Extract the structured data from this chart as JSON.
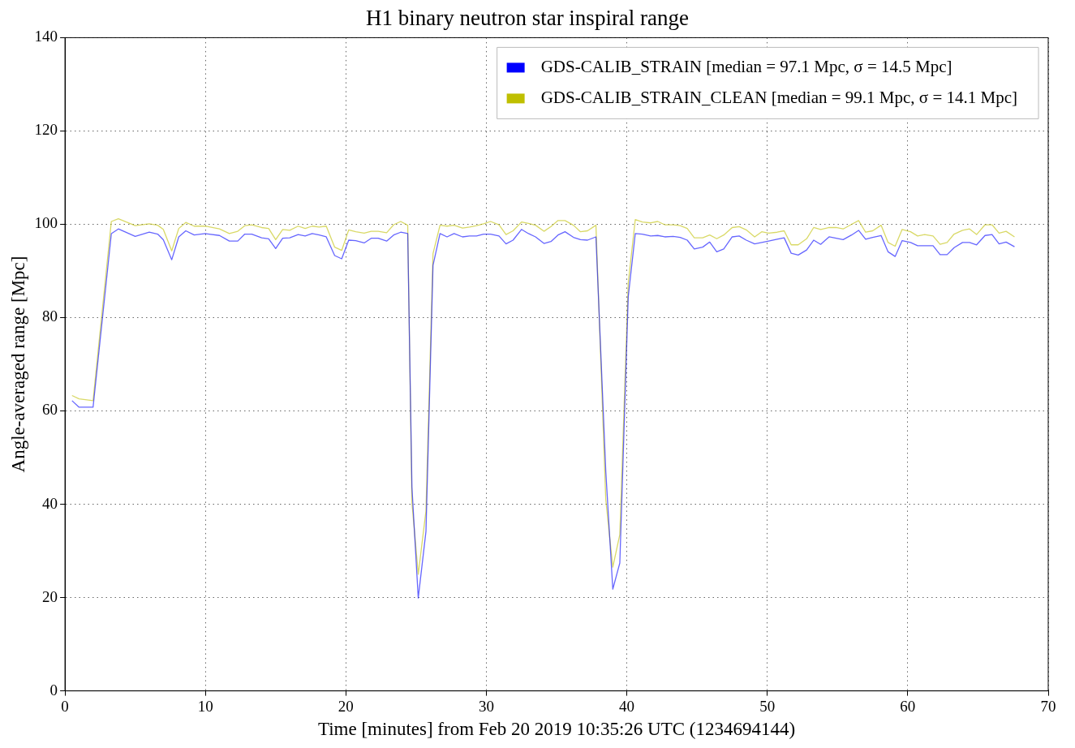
{
  "chart_data": {
    "type": "line",
    "title": "H1 binary neutron star inspiral range",
    "xlabel": "Time [minutes] from Feb 20 2019 10:35:26 UTC (1234694144)",
    "ylabel": "Angle-averaged range [Mpc]",
    "x": [
      0.5,
      1,
      2,
      3.3,
      3.8,
      5,
      6,
      6.6,
      7,
      7.6,
      8.1,
      8.6,
      9.2,
      10,
      11,
      11.7,
      12.3,
      12.8,
      13.3,
      14,
      14.5,
      15,
      15.5,
      16,
      16.6,
      17.1,
      17.6,
      18.1,
      18.6,
      19.2,
      19.7,
      20.2,
      20.7,
      21.3,
      21.8,
      22.3,
      22.9,
      23.4,
      23.9,
      24.4,
      24.7,
      25.15,
      25.7,
      26.2,
      26.7,
      27.2,
      27.7,
      28.3,
      28.8,
      29.3,
      29.8,
      30.3,
      30.9,
      31.4,
      31.9,
      32.5,
      33,
      33.5,
      34.1,
      34.6,
      35.1,
      35.6,
      36.2,
      36.7,
      37.2,
      37.8,
      38.5,
      39,
      39.5,
      40.1,
      40.6,
      41.1,
      41.7,
      42.2,
      42.7,
      43.3,
      43.8,
      44.3,
      44.8,
      45.4,
      45.9,
      46.4,
      46.9,
      47.5,
      48,
      48.5,
      49.1,
      49.6,
      50.1,
      50.7,
      51.2,
      51.7,
      52.2,
      52.8,
      53.3,
      53.8,
      54.4,
      54.9,
      55.4,
      56,
      56.5,
      57,
      57.5,
      58.1,
      58.6,
      59.1,
      59.6,
      60.2,
      60.7,
      61.2,
      61.8,
      62.3,
      62.8,
      63.3,
      63.9,
      64.4,
      64.9,
      65.5,
      66,
      66.5,
      67,
      67.6
    ],
    "series": [
      {
        "name": "GDS-CALIB_STRAIN [median = 97.1 Mpc, σ = 14.5 Mpc]",
        "color": "#0000ff",
        "values": [
          62.2,
          60.8,
          60.8,
          98,
          99,
          97.4,
          98.3,
          97.9,
          96.7,
          92.4,
          97.3,
          98.6,
          97.7,
          98,
          97.6,
          96.4,
          96.4,
          97.9,
          97.9,
          97.1,
          96.9,
          94.8,
          97,
          97.1,
          97.8,
          97.5,
          98,
          97.7,
          97.3,
          93.3,
          92.6,
          96.6,
          96.5,
          96,
          97,
          97,
          96.4,
          97.7,
          98.3,
          98,
          43.7,
          19.9,
          34.2,
          91.2,
          98,
          97.3,
          98,
          97.3,
          97.5,
          97.5,
          97.9,
          97.9,
          97.5,
          95.8,
          96.6,
          98.9,
          98,
          97.3,
          95.9,
          96.3,
          97.7,
          98.4,
          97.2,
          96.7,
          96.6,
          97.3,
          47.1,
          21.8,
          27.4,
          84.5,
          98,
          97.9,
          97.5,
          97.6,
          97.3,
          97.4,
          97.2,
          96.6,
          94.7,
          95.1,
          96.2,
          94.1,
          94.7,
          97.3,
          97.5,
          96.6,
          95.8,
          96.1,
          96.4,
          96.8,
          97.1,
          93.8,
          93.4,
          94.5,
          96.6,
          95.7,
          97.3,
          97,
          96.7,
          97.7,
          98.7,
          96.8,
          97.2,
          97.6,
          94.1,
          93.1,
          96.5,
          96.1,
          95.4,
          95.4,
          95.4,
          93.5,
          93.5,
          95,
          96.1,
          96.1,
          95.6,
          97.6,
          97.8,
          95.8,
          96.2,
          95.2
        ]
      },
      {
        "name": "GDS-CALIB_STRAIN_CLEAN [median = 99.1 Mpc, σ = 14.1 Mpc]",
        "color": "#bfbf00",
        "values": [
          63.3,
          62.6,
          62.2,
          100.6,
          101.2,
          99.7,
          100.1,
          99.8,
          98.9,
          94.3,
          99.1,
          100.4,
          99.6,
          99.6,
          99,
          98,
          98.5,
          99.7,
          99.9,
          99.3,
          99.1,
          96.7,
          98.9,
          98.7,
          99.6,
          99.1,
          99.6,
          99.4,
          99.6,
          95.1,
          94.4,
          98.8,
          98.4,
          98.1,
          98.5,
          98.5,
          98.2,
          99.9,
          100.6,
          99.8,
          40.3,
          25,
          38.6,
          93.7,
          99.8,
          99.6,
          99.8,
          99.2,
          99.4,
          99.7,
          100.1,
          100.6,
          99.9,
          97.8,
          98.6,
          100.5,
          100.2,
          99.8,
          98.5,
          99.5,
          100.8,
          100.8,
          99.8,
          98.4,
          98.6,
          99.8,
          41,
          26.5,
          33.5,
          87.4,
          101,
          100.5,
          100.3,
          100.6,
          99.9,
          99.9,
          99.7,
          99.1,
          97.1,
          97.1,
          97.7,
          96.9,
          97.7,
          99.3,
          99.5,
          98.8,
          97.3,
          98.4,
          98.1,
          98.3,
          98.6,
          95.6,
          95.6,
          96.9,
          99.3,
          98.9,
          99.3,
          99.3,
          99,
          100,
          100.8,
          98.3,
          98.6,
          99.8,
          96.1,
          95.3,
          98.9,
          98.4,
          97.5,
          97.8,
          97.5,
          95.7,
          96.1,
          97.9,
          98.7,
          99,
          97.8,
          99.9,
          99.9,
          98.1,
          98.5,
          97.3
        ]
      }
    ],
    "xlim": [
      0,
      70
    ],
    "xticks": [
      0,
      10,
      20,
      30,
      40,
      50,
      60,
      70
    ],
    "ylim": [
      0,
      140
    ],
    "yticks": [
      0,
      20,
      40,
      60,
      80,
      100,
      120,
      140
    ],
    "grid": true,
    "legend": "top right",
    "line_style": "solid"
  }
}
